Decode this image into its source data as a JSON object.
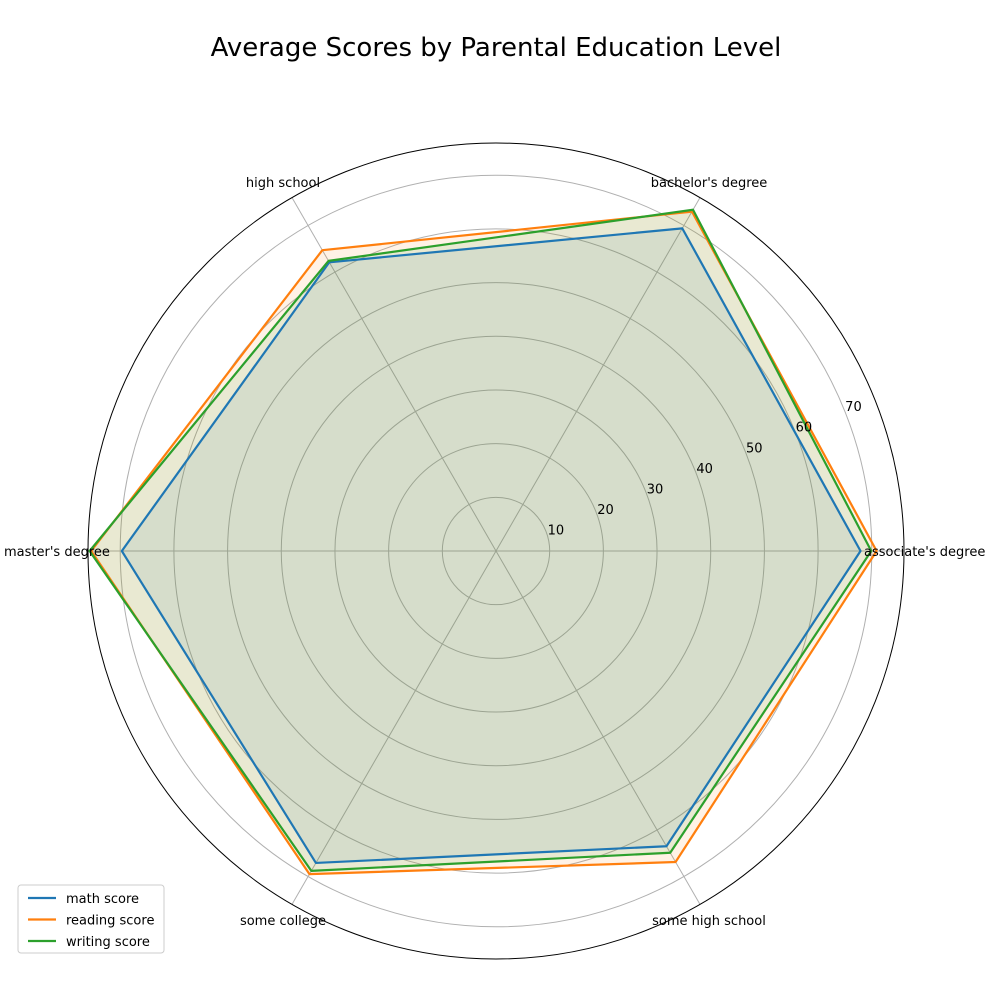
{
  "chart_data": {
    "type": "radar",
    "title": "Average Scores by Parental Education Level",
    "categories": [
      "associate's degree",
      "bachelor's degree",
      "high school",
      "master's degree",
      "some college",
      "some high school"
    ],
    "r_ticks": [
      10,
      20,
      30,
      40,
      50,
      60,
      70
    ],
    "r_range": [
      0,
      76
    ],
    "grid": true,
    "legend_placement": "lower-left",
    "series": [
      {
        "name": "math score",
        "color": "#1f77b4",
        "values": [
          67.9,
          69.4,
          62.1,
          69.7,
          67.1,
          63.5
        ]
      },
      {
        "name": "reading score",
        "color": "#ff7f0e",
        "values": [
          70.9,
          73.0,
          64.7,
          75.4,
          69.5,
          66.9
        ]
      },
      {
        "name": "writing score",
        "color": "#2ca02c",
        "values": [
          69.9,
          73.4,
          62.4,
          75.7,
          68.8,
          64.9
        ]
      }
    ]
  }
}
